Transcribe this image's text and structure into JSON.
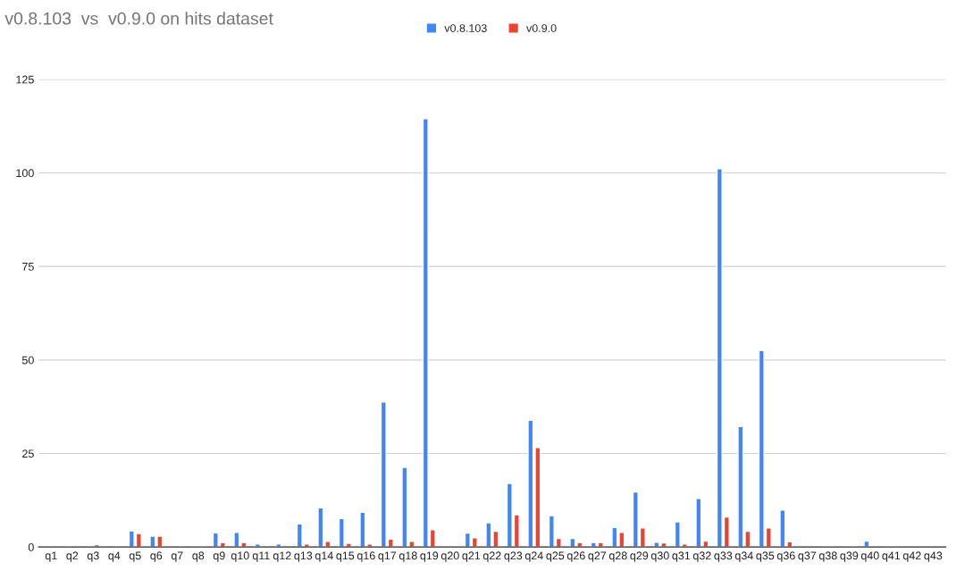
{
  "chart_data": {
    "type": "bar",
    "title": "v0.8.103  vs  v0.9.0 on hits dataset",
    "categories": [
      "q1",
      "q2",
      "q3",
      "q4",
      "q5",
      "q6",
      "q7",
      "q8",
      "q9",
      "q10",
      "q11",
      "q12",
      "q13",
      "q14",
      "q15",
      "q16",
      "q17",
      "q18",
      "q19",
      "q20",
      "q21",
      "q22",
      "q23",
      "q24",
      "q25",
      "q26",
      "q27",
      "q28",
      "q29",
      "q30",
      "q31",
      "q32",
      "q33",
      "q34",
      "q35",
      "q36",
      "q37",
      "q38",
      "q39",
      "q40",
      "q41",
      "q42",
      "q43"
    ],
    "series": [
      {
        "name": "v0.8.103",
        "color": "#4285f4",
        "values": [
          null,
          0.2,
          0.2,
          0.4,
          4.3,
          2.9,
          null,
          0.2,
          3.8,
          3.9,
          0.8,
          0.8,
          6.2,
          10.5,
          7.6,
          9.3,
          38.8,
          21.3,
          114.5,
          null,
          3.7,
          6.5,
          17.0,
          33.9,
          8.4,
          2.3,
          1.2,
          5.2,
          14.7,
          1.3,
          6.7,
          13.0,
          101.1,
          32.2,
          52.5,
          9.9,
          0.4,
          0.3,
          0.3,
          1.6,
          0.2,
          null,
          null
        ]
      },
      {
        "name": "v0.9.0",
        "color": "#ea4335",
        "values": [
          null,
          0.4,
          0.6,
          0.2,
          3.6,
          2.9,
          0.2,
          0.2,
          1.2,
          1.2,
          0.4,
          0.4,
          0.8,
          1.5,
          1.0,
          0.8,
          2.1,
          1.5,
          4.6,
          null,
          2.5,
          4.2,
          8.6,
          26.6,
          2.3,
          1.2,
          1.2,
          3.9,
          5.1,
          1.1,
          0.8,
          1.6,
          8.0,
          4.2,
          5.1,
          1.4,
          0.4,
          0.3,
          0.3,
          0.4,
          0.2,
          null,
          null
        ]
      }
    ],
    "ylim": [
      0,
      125
    ],
    "yticks": [
      0,
      25,
      50,
      75,
      100,
      125
    ],
    "grid": "y",
    "legend": "top"
  }
}
